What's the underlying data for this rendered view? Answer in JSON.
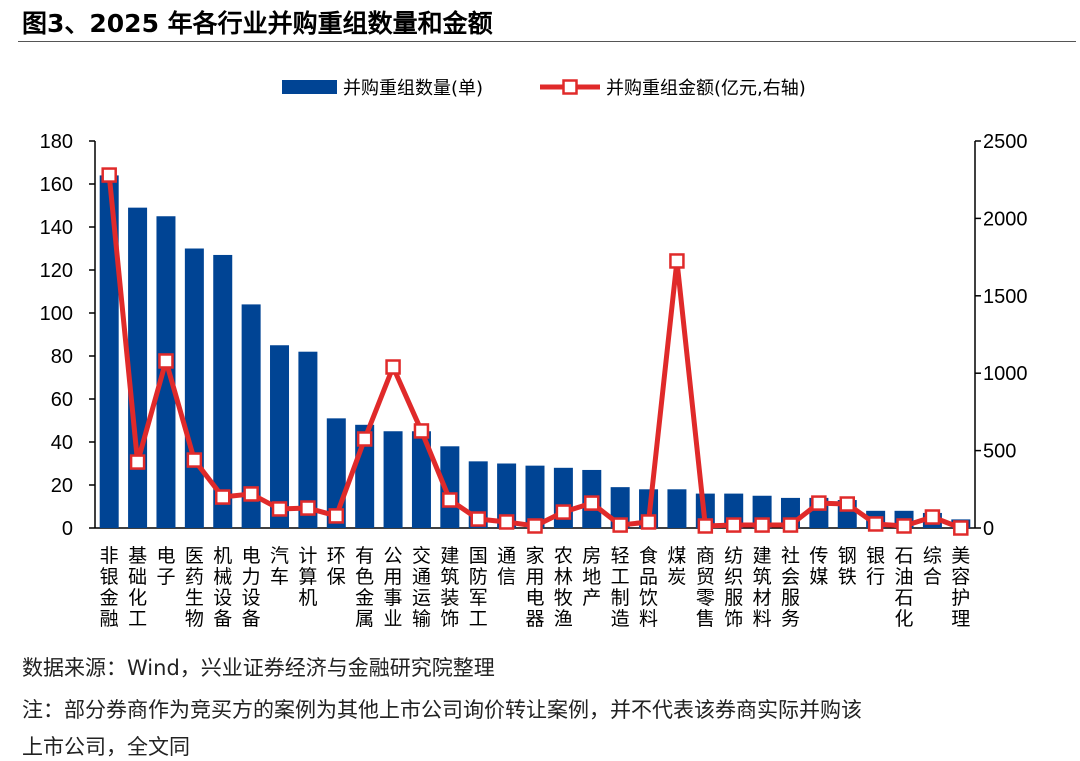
{
  "title": "图3、2025 年各行业并购重组数量和金额",
  "chart_data": {
    "type": "bar+line",
    "categories": [
      "非银金融",
      "基础化工",
      "电子",
      "医药生物",
      "机械设备",
      "电力设备",
      "汽车",
      "计算机",
      "环保",
      "有色金属",
      "公用事业",
      "交通运输",
      "建筑装饰",
      "国防军工",
      "通信",
      "家用电器",
      "农林牧渔",
      "房地产",
      "轻工制造",
      "食品饮料",
      "煤炭",
      "商贸零售",
      "纺织服饰",
      "建筑材料",
      "社会服务",
      "传媒",
      "钢铁",
      "银行",
      "石油石化",
      "综合",
      "美容护理"
    ],
    "series": [
      {
        "name": "并购重组数量(单)",
        "type": "bar",
        "axis": "left",
        "color": "#004494",
        "values": [
          164,
          149,
          145,
          130,
          127,
          104,
          85,
          82,
          51,
          48,
          45,
          45,
          38,
          31,
          30,
          29,
          28,
          27,
          19,
          18,
          18,
          16,
          16,
          15,
          14,
          14,
          13,
          8,
          8,
          7,
          4
        ]
      },
      {
        "name": "并购重组金额(亿元,右轴)",
        "type": "line",
        "axis": "right",
        "color": "#e02a2a",
        "values": [
          2280,
          426,
          1079,
          439,
          200,
          220,
          123,
          129,
          78,
          575,
          1040,
          627,
          181,
          58,
          39,
          13,
          103,
          161,
          19,
          39,
          1725,
          13,
          19,
          19,
          19,
          161,
          155,
          26,
          13,
          71,
          0
        ]
      }
    ],
    "y_left": {
      "range": [
        0,
        180
      ],
      "ticks": [
        0,
        20,
        40,
        60,
        80,
        100,
        120,
        140,
        160,
        180
      ]
    },
    "y_right": {
      "range": [
        0,
        2500
      ],
      "ticks": [
        0,
        500,
        1000,
        1500,
        2000,
        2500
      ]
    },
    "legend": "top",
    "grid": false
  },
  "notes": {
    "source": "数据来源：Wind，兴业证券经济与金融研究院整理",
    "note1": "注：部分券商作为竞买方的案例为其他上市公司询价转让案例，并不代表该券商实际并购该",
    "note2": "上市公司，全文同"
  }
}
